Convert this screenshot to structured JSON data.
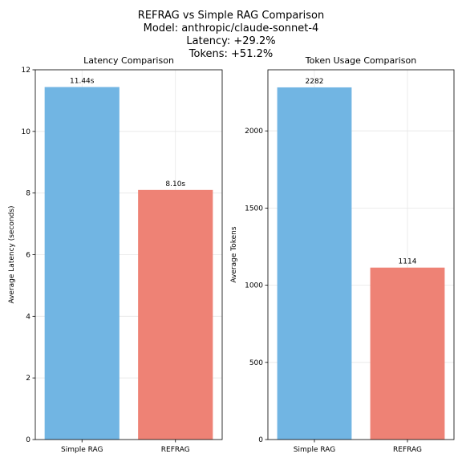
{
  "figure": {
    "title_lines": [
      "REFRAG vs Simple RAG Comparison",
      "Model: anthropic/claude-sonnet-4",
      "Latency: +29.2%",
      "Tokens: +51.2%"
    ]
  },
  "chart_data": [
    {
      "type": "bar",
      "title": "Latency Comparison",
      "xlabel": "",
      "ylabel": "Average Latency (seconds)",
      "categories": [
        "Simple RAG",
        "REFRAG"
      ],
      "values": [
        11.44,
        8.1
      ],
      "value_labels": [
        "11.44s",
        "8.10s"
      ],
      "colors": [
        "#71b5e3",
        "#ee8275"
      ],
      "ylim": [
        0,
        12
      ],
      "yticks": [
        0,
        2,
        4,
        6,
        8,
        10,
        12
      ],
      "ytick_labels": [
        "0",
        "2",
        "4",
        "6",
        "8",
        "10",
        "12"
      ],
      "grid": true
    },
    {
      "type": "bar",
      "title": "Token Usage Comparison",
      "xlabel": "",
      "ylabel": "Average Tokens",
      "categories": [
        "Simple RAG",
        "REFRAG"
      ],
      "values": [
        2282,
        1114
      ],
      "value_labels": [
        "2282",
        "1114"
      ],
      "colors": [
        "#71b5e3",
        "#ee8275"
      ],
      "ylim": [
        0,
        2396
      ],
      "yticks": [
        0,
        500,
        1000,
        1500,
        2000
      ],
      "ytick_labels": [
        "0",
        "500",
        "1000",
        "1500",
        "2000"
      ],
      "grid": true
    }
  ]
}
